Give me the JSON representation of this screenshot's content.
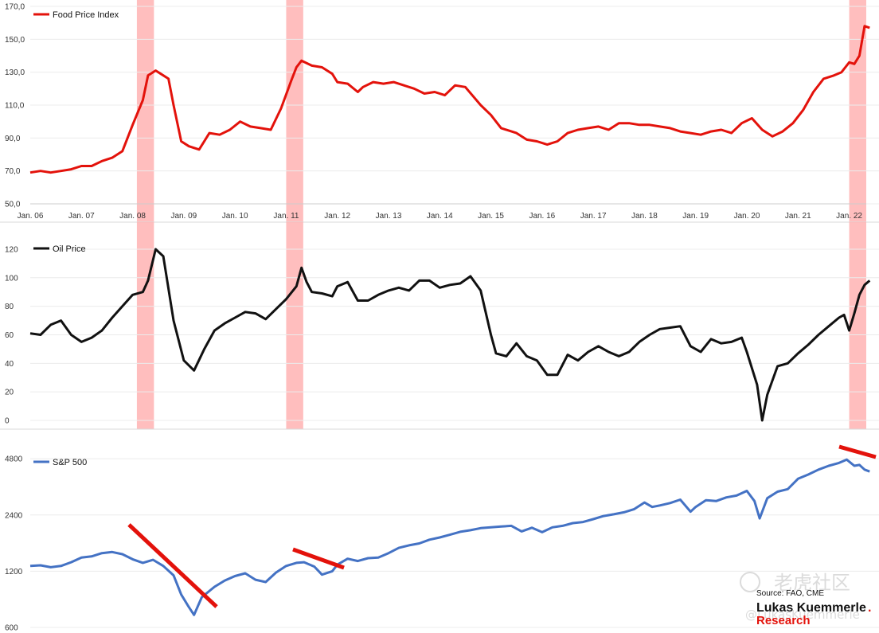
{
  "chart_data": [
    {
      "type": "line",
      "series": [
        {
          "name": "Food Price Index",
          "color": "#e3120b"
        }
      ],
      "ylim": [
        50,
        170
      ],
      "yticks": [
        "170,0",
        "150,0",
        "130,0",
        "110,0",
        "90,0",
        "70,0",
        "50,0"
      ],
      "ytick_values": [
        170,
        150,
        130,
        110,
        90,
        70,
        50
      ],
      "xticks": [
        "Jan. 06",
        "Jan. 07",
        "Jan. 08",
        "Jan. 09",
        "Jan. 10",
        "Jan. 11",
        "Jan. 12",
        "Jan. 13",
        "Jan. 14",
        "Jan. 15",
        "Jan. 16",
        "Jan. 17",
        "Jan. 18",
        "Jan. 19",
        "Jan. 20",
        "Jan. 21",
        "Jan. 22"
      ],
      "x_start": "2006-01",
      "x_end": "2022-05",
      "shaded_periods": [
        [
          "2008-02",
          "2008-06"
        ],
        [
          "2011-01",
          "2011-05"
        ],
        [
          "2022-01",
          "2022-05"
        ]
      ],
      "values": [
        [
          2006.0,
          69
        ],
        [
          2006.2,
          70
        ],
        [
          2006.4,
          69
        ],
        [
          2006.6,
          70
        ],
        [
          2006.8,
          71
        ],
        [
          2007.0,
          73
        ],
        [
          2007.2,
          73
        ],
        [
          2007.4,
          76
        ],
        [
          2007.6,
          78
        ],
        [
          2007.8,
          82
        ],
        [
          2008.0,
          98
        ],
        [
          2008.2,
          113
        ],
        [
          2008.3,
          128
        ],
        [
          2008.45,
          131
        ],
        [
          2008.55,
          129
        ],
        [
          2008.7,
          126
        ],
        [
          2008.8,
          110
        ],
        [
          2008.95,
          88
        ],
        [
          2009.1,
          85
        ],
        [
          2009.3,
          83
        ],
        [
          2009.5,
          93
        ],
        [
          2009.7,
          92
        ],
        [
          2009.9,
          95
        ],
        [
          2010.1,
          100
        ],
        [
          2010.3,
          97
        ],
        [
          2010.5,
          96
        ],
        [
          2010.7,
          95
        ],
        [
          2010.9,
          108
        ],
        [
          2011.1,
          125
        ],
        [
          2011.2,
          133
        ],
        [
          2011.3,
          137
        ],
        [
          2011.5,
          134
        ],
        [
          2011.7,
          133
        ],
        [
          2011.9,
          129
        ],
        [
          2012.0,
          124
        ],
        [
          2012.2,
          123
        ],
        [
          2012.4,
          118
        ],
        [
          2012.5,
          121
        ],
        [
          2012.7,
          124
        ],
        [
          2012.9,
          123
        ],
        [
          2013.1,
          124
        ],
        [
          2013.3,
          122
        ],
        [
          2013.5,
          120
        ],
        [
          2013.7,
          117
        ],
        [
          2013.9,
          118
        ],
        [
          2014.1,
          116
        ],
        [
          2014.3,
          122
        ],
        [
          2014.5,
          121
        ],
        [
          2014.8,
          110
        ],
        [
          2015.0,
          104
        ],
        [
          2015.2,
          96
        ],
        [
          2015.5,
          93
        ],
        [
          2015.7,
          89
        ],
        [
          2015.9,
          88
        ],
        [
          2016.1,
          86
        ],
        [
          2016.3,
          88
        ],
        [
          2016.5,
          93
        ],
        [
          2016.7,
          95
        ],
        [
          2016.9,
          96
        ],
        [
          2017.1,
          97
        ],
        [
          2017.3,
          95
        ],
        [
          2017.5,
          99
        ],
        [
          2017.7,
          99
        ],
        [
          2017.9,
          98
        ],
        [
          2018.1,
          98
        ],
        [
          2018.3,
          97
        ],
        [
          2018.5,
          96
        ],
        [
          2018.7,
          94
        ],
        [
          2018.9,
          93
        ],
        [
          2019.1,
          92
        ],
        [
          2019.3,
          94
        ],
        [
          2019.5,
          95
        ],
        [
          2019.7,
          93
        ],
        [
          2019.9,
          99
        ],
        [
          2020.1,
          102
        ],
        [
          2020.3,
          95
        ],
        [
          2020.5,
          91
        ],
        [
          2020.7,
          94
        ],
        [
          2020.9,
          99
        ],
        [
          2021.1,
          107
        ],
        [
          2021.3,
          118
        ],
        [
          2021.5,
          126
        ],
        [
          2021.7,
          128
        ],
        [
          2021.85,
          130
        ],
        [
          2022.0,
          136
        ],
        [
          2022.1,
          135
        ],
        [
          2022.2,
          140
        ],
        [
          2022.3,
          158
        ],
        [
          2022.4,
          157
        ]
      ]
    },
    {
      "type": "line",
      "series": [
        {
          "name": "Oil Price",
          "color": "#111111"
        }
      ],
      "ylim": [
        0,
        125
      ],
      "yticks": [
        "120",
        "100",
        "80",
        "60",
        "40",
        "20",
        "0"
      ],
      "ytick_values": [
        120,
        100,
        80,
        60,
        40,
        20,
        0
      ],
      "x_start": "2006-01",
      "x_end": "2022-05",
      "shaded_periods": [
        [
          "2008-02",
          "2008-06"
        ],
        [
          "2011-01",
          "2011-05"
        ],
        [
          "2022-01",
          "2022-05"
        ]
      ],
      "values": [
        [
          2006.0,
          61
        ],
        [
          2006.2,
          60
        ],
        [
          2006.4,
          67
        ],
        [
          2006.6,
          70
        ],
        [
          2006.8,
          60
        ],
        [
          2007.0,
          55
        ],
        [
          2007.2,
          58
        ],
        [
          2007.4,
          63
        ],
        [
          2007.6,
          72
        ],
        [
          2007.8,
          80
        ],
        [
          2008.0,
          88
        ],
        [
          2008.2,
          90
        ],
        [
          2008.3,
          98
        ],
        [
          2008.45,
          120
        ],
        [
          2008.6,
          115
        ],
        [
          2008.8,
          70
        ],
        [
          2009.0,
          42
        ],
        [
          2009.2,
          35
        ],
        [
          2009.4,
          50
        ],
        [
          2009.6,
          63
        ],
        [
          2009.8,
          68
        ],
        [
          2010.0,
          72
        ],
        [
          2010.2,
          76
        ],
        [
          2010.4,
          75
        ],
        [
          2010.6,
          71
        ],
        [
          2010.8,
          78
        ],
        [
          2011.0,
          85
        ],
        [
          2011.2,
          94
        ],
        [
          2011.3,
          107
        ],
        [
          2011.4,
          97
        ],
        [
          2011.5,
          90
        ],
        [
          2011.7,
          89
        ],
        [
          2011.9,
          87
        ],
        [
          2012.0,
          94
        ],
        [
          2012.2,
          97
        ],
        [
          2012.4,
          84
        ],
        [
          2012.6,
          84
        ],
        [
          2012.8,
          88
        ],
        [
          2013.0,
          91
        ],
        [
          2013.2,
          93
        ],
        [
          2013.4,
          91
        ],
        [
          2013.6,
          98
        ],
        [
          2013.8,
          98
        ],
        [
          2014.0,
          93
        ],
        [
          2014.2,
          95
        ],
        [
          2014.4,
          96
        ],
        [
          2014.6,
          101
        ],
        [
          2014.8,
          91
        ],
        [
          2015.0,
          60
        ],
        [
          2015.1,
          47
        ],
        [
          2015.3,
          45
        ],
        [
          2015.5,
          54
        ],
        [
          2015.7,
          45
        ],
        [
          2015.9,
          42
        ],
        [
          2016.1,
          32
        ],
        [
          2016.3,
          32
        ],
        [
          2016.5,
          46
        ],
        [
          2016.7,
          42
        ],
        [
          2016.9,
          48
        ],
        [
          2017.1,
          52
        ],
        [
          2017.3,
          48
        ],
        [
          2017.5,
          45
        ],
        [
          2017.7,
          48
        ],
        [
          2017.9,
          55
        ],
        [
          2018.1,
          60
        ],
        [
          2018.3,
          64
        ],
        [
          2018.5,
          65
        ],
        [
          2018.7,
          66
        ],
        [
          2018.9,
          52
        ],
        [
          2019.1,
          48
        ],
        [
          2019.3,
          57
        ],
        [
          2019.5,
          54
        ],
        [
          2019.7,
          55
        ],
        [
          2019.9,
          58
        ],
        [
          2020.0,
          48
        ],
        [
          2020.2,
          25
        ],
        [
          2020.3,
          0
        ],
        [
          2020.4,
          18
        ],
        [
          2020.6,
          38
        ],
        [
          2020.8,
          40
        ],
        [
          2021.0,
          47
        ],
        [
          2021.2,
          53
        ],
        [
          2021.4,
          60
        ],
        [
          2021.6,
          66
        ],
        [
          2021.8,
          72
        ],
        [
          2021.9,
          74
        ],
        [
          2022.0,
          63
        ],
        [
          2022.1,
          75
        ],
        [
          2022.2,
          88
        ],
        [
          2022.3,
          95
        ],
        [
          2022.4,
          98
        ]
      ]
    },
    {
      "type": "line",
      "series": [
        {
          "name": "S&P 500",
          "color": "#4472c4"
        }
      ],
      "scale": "log",
      "ylim": [
        600,
        5200
      ],
      "yticks": [
        "4800",
        "2400",
        "1200",
        "600"
      ],
      "ytick_values": [
        4800,
        2400,
        1200,
        600
      ],
      "x_start": "2006-01",
      "x_end": "2022-05",
      "values": [
        [
          2006.0,
          1280
        ],
        [
          2006.2,
          1290
        ],
        [
          2006.4,
          1260
        ],
        [
          2006.6,
          1280
        ],
        [
          2006.8,
          1340
        ],
        [
          2007.0,
          1420
        ],
        [
          2007.2,
          1440
        ],
        [
          2007.4,
          1500
        ],
        [
          2007.6,
          1520
        ],
        [
          2007.8,
          1480
        ],
        [
          2008.0,
          1390
        ],
        [
          2008.2,
          1330
        ],
        [
          2008.4,
          1380
        ],
        [
          2008.6,
          1280
        ],
        [
          2008.8,
          1140
        ],
        [
          2008.95,
          900
        ],
        [
          2009.1,
          770
        ],
        [
          2009.2,
          700
        ],
        [
          2009.35,
          870
        ],
        [
          2009.6,
          990
        ],
        [
          2009.8,
          1070
        ],
        [
          2010.0,
          1130
        ],
        [
          2010.2,
          1170
        ],
        [
          2010.4,
          1080
        ],
        [
          2010.6,
          1050
        ],
        [
          2010.8,
          1180
        ],
        [
          2011.0,
          1280
        ],
        [
          2011.2,
          1330
        ],
        [
          2011.35,
          1340
        ],
        [
          2011.55,
          1270
        ],
        [
          2011.7,
          1150
        ],
        [
          2011.9,
          1200
        ],
        [
          2012.0,
          1300
        ],
        [
          2012.2,
          1400
        ],
        [
          2012.4,
          1360
        ],
        [
          2012.6,
          1410
        ],
        [
          2012.8,
          1420
        ],
        [
          2013.0,
          1500
        ],
        [
          2013.2,
          1600
        ],
        [
          2013.4,
          1650
        ],
        [
          2013.6,
          1690
        ],
        [
          2013.8,
          1770
        ],
        [
          2014.0,
          1820
        ],
        [
          2014.2,
          1880
        ],
        [
          2014.4,
          1950
        ],
        [
          2014.6,
          1990
        ],
        [
          2014.8,
          2040
        ],
        [
          2015.0,
          2060
        ],
        [
          2015.2,
          2080
        ],
        [
          2015.4,
          2100
        ],
        [
          2015.6,
          1960
        ],
        [
          2015.8,
          2050
        ],
        [
          2016.0,
          1940
        ],
        [
          2016.2,
          2060
        ],
        [
          2016.4,
          2100
        ],
        [
          2016.6,
          2170
        ],
        [
          2016.8,
          2200
        ],
        [
          2017.0,
          2280
        ],
        [
          2017.2,
          2370
        ],
        [
          2017.4,
          2420
        ],
        [
          2017.6,
          2480
        ],
        [
          2017.8,
          2580
        ],
        [
          2018.0,
          2800
        ],
        [
          2018.15,
          2650
        ],
        [
          2018.3,
          2700
        ],
        [
          2018.5,
          2780
        ],
        [
          2018.7,
          2900
        ],
        [
          2018.9,
          2500
        ],
        [
          2019.0,
          2650
        ],
        [
          2019.2,
          2880
        ],
        [
          2019.4,
          2850
        ],
        [
          2019.6,
          2980
        ],
        [
          2019.8,
          3050
        ],
        [
          2020.0,
          3230
        ],
        [
          2020.15,
          2850
        ],
        [
          2020.25,
          2300
        ],
        [
          2020.4,
          2950
        ],
        [
          2020.6,
          3200
        ],
        [
          2020.8,
          3300
        ],
        [
          2021.0,
          3750
        ],
        [
          2021.2,
          3950
        ],
        [
          2021.4,
          4200
        ],
        [
          2021.6,
          4400
        ],
        [
          2021.8,
          4560
        ],
        [
          2021.95,
          4750
        ],
        [
          2022.1,
          4400
        ],
        [
          2022.2,
          4450
        ],
        [
          2022.3,
          4200
        ],
        [
          2022.4,
          4100
        ]
      ]
    }
  ],
  "annotations": {
    "source": "Source: FAO, CME",
    "brand_line1": "Lukas Kuemmerle",
    "brand_line2": "Research",
    "brand_dot": ".",
    "watermark_text": "老虎社区",
    "watermark_handle": "@LukasKuemmerle"
  }
}
